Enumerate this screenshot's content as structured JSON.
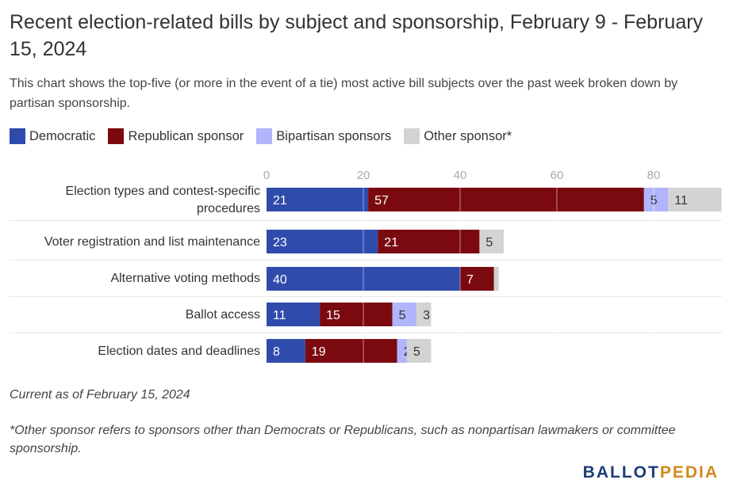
{
  "title": "Recent election-related bills by subject and sponsorship, February 9 - February 15, 2024",
  "subtitle": "This chart shows the top-five (or more in the event of a tie) most active bill subjects over the past week broken down by partisan sponsorship.",
  "note": "Current as of February 15, 2024",
  "footnote": "*Other sponsor refers to sponsors other than Democrats or Republicans, such as nonpartisan lawmakers or committee sponsorship.",
  "logo": {
    "part1": "BALLOT",
    "part2": "PEDIA"
  },
  "colors": {
    "Democratic": "#2f4bab",
    "Republican sponsor": "#7b0a10",
    "Bipartisan sponsors": "#b1b5fb",
    "Other sponsor*": "#d3d3d3"
  },
  "chart_data": {
    "type": "bar",
    "orientation": "horizontal",
    "stacked": true,
    "categories": [
      "Election types and contest-specific procedures",
      "Voter registration and list maintenance",
      "Alternative voting methods",
      "Ballot access",
      "Election dates and deadlines"
    ],
    "series": [
      {
        "name": "Democratic",
        "values": [
          21,
          23,
          40,
          11,
          8
        ]
      },
      {
        "name": "Republican sponsor",
        "values": [
          57,
          21,
          7,
          15,
          19
        ]
      },
      {
        "name": "Bipartisan sponsors",
        "values": [
          5,
          0,
          0,
          5,
          2
        ]
      },
      {
        "name": "Other sponsor*",
        "values": [
          11,
          5,
          1,
          3,
          5
        ]
      }
    ],
    "xticks": [
      0,
      20,
      40,
      60,
      80
    ],
    "xlim": [
      0,
      94
    ],
    "grid": true,
    "legend": "top-left"
  }
}
